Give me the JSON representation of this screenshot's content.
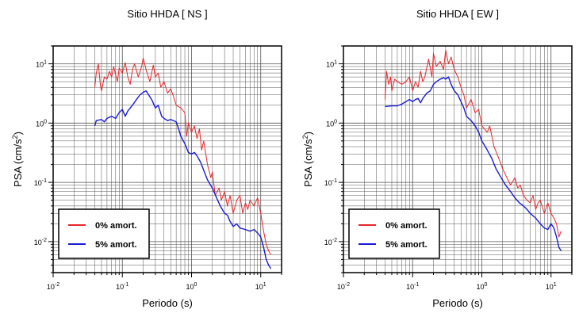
{
  "chart_data": [
    {
      "type": "line",
      "title": "Sitio HHDA [ NS ]",
      "xlabel": "Periodo (s)",
      "ylabel_base": "PSA (cm/s",
      "ylabel_exp": "2",
      "ylabel_close": ")",
      "x_scale": "log",
      "y_scale": "log",
      "xlim": [
        0.01,
        20
      ],
      "ylim": [
        0.003,
        20
      ],
      "grid": true,
      "legend_position": "bottom-left",
      "x_ticks": [
        {
          "value": 0.01,
          "base": "10",
          "exp": "-2"
        },
        {
          "value": 0.1,
          "base": "10",
          "exp": "-1"
        },
        {
          "value": 1,
          "base": "10",
          "exp": "0"
        },
        {
          "value": 10,
          "base": "10",
          "exp": "1"
        }
      ],
      "y_ticks": [
        {
          "value": 0.01,
          "base": "10",
          "exp": "-2"
        },
        {
          "value": 0.1,
          "base": "10",
          "exp": "-1"
        },
        {
          "value": 1,
          "base": "10",
          "exp": "0"
        },
        {
          "value": 10,
          "base": "10",
          "exp": "1"
        }
      ],
      "series": [
        {
          "name": "0% amort.",
          "color": "#e8262a",
          "points": [
            [
              0.04,
              4.0
            ],
            [
              0.042,
              7.0
            ],
            [
              0.045,
              10.0
            ],
            [
              0.048,
              4.5
            ],
            [
              0.05,
              3.5
            ],
            [
              0.055,
              6.0
            ],
            [
              0.06,
              5.5
            ],
            [
              0.065,
              7.5
            ],
            [
              0.07,
              6.0
            ],
            [
              0.075,
              9.0
            ],
            [
              0.08,
              6.5
            ],
            [
              0.085,
              5.0
            ],
            [
              0.09,
              8.5
            ],
            [
              0.1,
              7.0
            ],
            [
              0.11,
              10.5
            ],
            [
              0.12,
              6.0
            ],
            [
              0.13,
              4.5
            ],
            [
              0.14,
              8.0
            ],
            [
              0.15,
              10.0
            ],
            [
              0.17,
              6.0
            ],
            [
              0.19,
              9.0
            ],
            [
              0.2,
              12.5
            ],
            [
              0.22,
              8.0
            ],
            [
              0.25,
              5.0
            ],
            [
              0.28,
              9.5
            ],
            [
              0.3,
              6.0
            ],
            [
              0.33,
              7.0
            ],
            [
              0.36,
              4.0
            ],
            [
              0.4,
              5.0
            ],
            [
              0.45,
              3.2
            ],
            [
              0.5,
              3.8
            ],
            [
              0.55,
              2.8
            ],
            [
              0.6,
              2.0
            ],
            [
              0.7,
              1.8
            ],
            [
              0.8,
              1.5
            ],
            [
              0.85,
              0.6
            ],
            [
              0.9,
              1.0
            ],
            [
              1.0,
              0.7
            ],
            [
              1.1,
              0.9
            ],
            [
              1.2,
              0.55
            ],
            [
              1.3,
              0.8
            ],
            [
              1.4,
              0.35
            ],
            [
              1.5,
              0.5
            ],
            [
              1.7,
              0.2
            ],
            [
              1.9,
              0.12
            ],
            [
              2.0,
              0.15
            ],
            [
              2.2,
              0.06
            ],
            [
              2.5,
              0.08
            ],
            [
              2.7,
              0.05
            ],
            [
              3.0,
              0.07
            ],
            [
              3.3,
              0.04
            ],
            [
              3.6,
              0.06
            ],
            [
              4.0,
              0.03
            ],
            [
              4.5,
              0.05
            ],
            [
              5.0,
              0.06
            ],
            [
              5.5,
              0.03
            ],
            [
              6.0,
              0.045
            ],
            [
              6.5,
              0.035
            ],
            [
              7.0,
              0.05
            ],
            [
              8.0,
              0.04
            ],
            [
              9.0,
              0.055
            ],
            [
              10.0,
              0.03
            ],
            [
              11.0,
              0.015
            ],
            [
              12.0,
              0.009
            ],
            [
              13.0,
              0.007
            ],
            [
              14.0,
              0.006
            ]
          ]
        },
        {
          "name": "5% amort.",
          "color": "#1a1ad6",
          "points": [
            [
              0.04,
              0.9
            ],
            [
              0.042,
              1.1
            ],
            [
              0.05,
              1.15
            ],
            [
              0.055,
              1.05
            ],
            [
              0.06,
              1.2
            ],
            [
              0.07,
              1.3
            ],
            [
              0.08,
              1.2
            ],
            [
              0.09,
              1.5
            ],
            [
              0.1,
              1.7
            ],
            [
              0.11,
              1.3
            ],
            [
              0.12,
              1.6
            ],
            [
              0.14,
              2.0
            ],
            [
              0.16,
              2.5
            ],
            [
              0.18,
              3.0
            ],
            [
              0.2,
              3.3
            ],
            [
              0.22,
              3.5
            ],
            [
              0.24,
              3.0
            ],
            [
              0.27,
              2.4
            ],
            [
              0.3,
              1.8
            ],
            [
              0.33,
              2.0
            ],
            [
              0.37,
              1.3
            ],
            [
              0.4,
              1.2
            ],
            [
              0.45,
              1.1
            ],
            [
              0.5,
              1.15
            ],
            [
              0.6,
              1.05
            ],
            [
              0.65,
              0.8
            ],
            [
              0.7,
              0.6
            ],
            [
              0.8,
              0.45
            ],
            [
              0.9,
              0.32
            ],
            [
              1.0,
              0.3
            ],
            [
              1.1,
              0.32
            ],
            [
              1.2,
              0.28
            ],
            [
              1.35,
              0.22
            ],
            [
              1.5,
              0.16
            ],
            [
              1.7,
              0.11
            ],
            [
              2.0,
              0.08
            ],
            [
              2.3,
              0.055
            ],
            [
              2.6,
              0.04
            ],
            [
              3.0,
              0.03
            ],
            [
              3.3,
              0.028
            ],
            [
              3.6,
              0.022
            ],
            [
              4.0,
              0.018
            ],
            [
              4.5,
              0.02
            ],
            [
              5.0,
              0.017
            ],
            [
              6.0,
              0.016
            ],
            [
              7.0,
              0.015
            ],
            [
              8.0,
              0.016
            ],
            [
              9.0,
              0.014
            ],
            [
              10.0,
              0.012
            ],
            [
              11.0,
              0.008
            ],
            [
              12.0,
              0.005
            ],
            [
              13.0,
              0.004
            ],
            [
              14.0,
              0.0035
            ]
          ]
        }
      ]
    },
    {
      "type": "line",
      "title": "Sitio HHDA [ EW ]",
      "xlabel": "Periodo (s)",
      "ylabel_base": "PSA (cm/s",
      "ylabel_exp": "2",
      "ylabel_close": ")",
      "x_scale": "log",
      "y_scale": "log",
      "xlim": [
        0.01,
        20
      ],
      "ylim": [
        0.003,
        20
      ],
      "grid": true,
      "legend_position": "bottom-left",
      "x_ticks": [
        {
          "value": 0.01,
          "base": "10",
          "exp": "-2"
        },
        {
          "value": 0.1,
          "base": "10",
          "exp": "-1"
        },
        {
          "value": 1,
          "base": "10",
          "exp": "0"
        },
        {
          "value": 10,
          "base": "10",
          "exp": "1"
        }
      ],
      "y_ticks": [
        {
          "value": 0.01,
          "base": "10",
          "exp": "-2"
        },
        {
          "value": 0.1,
          "base": "10",
          "exp": "-1"
        },
        {
          "value": 1,
          "base": "10",
          "exp": "0"
        },
        {
          "value": 10,
          "base": "10",
          "exp": "1"
        }
      ],
      "series": [
        {
          "name": "0% amort.",
          "color": "#e8262a",
          "points": [
            [
              0.04,
              2.5
            ],
            [
              0.042,
              7.5
            ],
            [
              0.045,
              4.5
            ],
            [
              0.048,
              6.0
            ],
            [
              0.05,
              3.5
            ],
            [
              0.055,
              5.5
            ],
            [
              0.06,
              5.0
            ],
            [
              0.07,
              4.5
            ],
            [
              0.08,
              5.0
            ],
            [
              0.09,
              6.0
            ],
            [
              0.1,
              3.5
            ],
            [
              0.11,
              5.0
            ],
            [
              0.12,
              4.0
            ],
            [
              0.13,
              7.5
            ],
            [
              0.14,
              5.0
            ],
            [
              0.15,
              6.0
            ],
            [
              0.17,
              12.0
            ],
            [
              0.19,
              6.0
            ],
            [
              0.2,
              15.0
            ],
            [
              0.22,
              9.0
            ],
            [
              0.25,
              11.0
            ],
            [
              0.28,
              8.0
            ],
            [
              0.3,
              17.0
            ],
            [
              0.33,
              10.0
            ],
            [
              0.36,
              13.0
            ],
            [
              0.4,
              8.0
            ],
            [
              0.45,
              6.0
            ],
            [
              0.5,
              4.0
            ],
            [
              0.55,
              3.0
            ],
            [
              0.6,
              1.8
            ],
            [
              0.7,
              2.5
            ],
            [
              0.8,
              1.5
            ],
            [
              0.9,
              1.7
            ],
            [
              1.0,
              0.9
            ],
            [
              1.2,
              0.7
            ],
            [
              1.3,
              0.9
            ],
            [
              1.5,
              0.4
            ],
            [
              1.7,
              0.28
            ],
            [
              2.0,
              0.17
            ],
            [
              2.3,
              0.12
            ],
            [
              2.6,
              0.09
            ],
            [
              3.0,
              0.12
            ],
            [
              3.3,
              0.08
            ],
            [
              3.6,
              0.09
            ],
            [
              4.0,
              0.06
            ],
            [
              4.5,
              0.05
            ],
            [
              5.0,
              0.045
            ],
            [
              5.5,
              0.06
            ],
            [
              6.0,
              0.035
            ],
            [
              6.5,
              0.045
            ],
            [
              7.0,
              0.05
            ],
            [
              8.0,
              0.03
            ],
            [
              9.0,
              0.045
            ],
            [
              10.0,
              0.03
            ],
            [
              11.0,
              0.025
            ],
            [
              12.0,
              0.02
            ],
            [
              13.0,
              0.012
            ],
            [
              14.0,
              0.015
            ]
          ]
        },
        {
          "name": "5% amort.",
          "color": "#1a1ad6",
          "points": [
            [
              0.04,
              1.9
            ],
            [
              0.05,
              1.95
            ],
            [
              0.06,
              1.95
            ],
            [
              0.07,
              2.1
            ],
            [
              0.08,
              2.3
            ],
            [
              0.09,
              2.5
            ],
            [
              0.1,
              2.3
            ],
            [
              0.11,
              2.5
            ],
            [
              0.12,
              2.6
            ],
            [
              0.13,
              2.2
            ],
            [
              0.14,
              2.6
            ],
            [
              0.16,
              3.2
            ],
            [
              0.18,
              3.5
            ],
            [
              0.2,
              4.5
            ],
            [
              0.22,
              5.0
            ],
            [
              0.25,
              5.5
            ],
            [
              0.28,
              5.8
            ],
            [
              0.3,
              5.5
            ],
            [
              0.33,
              6.0
            ],
            [
              0.36,
              4.5
            ],
            [
              0.4,
              3.5
            ],
            [
              0.45,
              3.0
            ],
            [
              0.5,
              2.3
            ],
            [
              0.55,
              1.8
            ],
            [
              0.6,
              1.3
            ],
            [
              0.7,
              1.1
            ],
            [
              0.8,
              0.9
            ],
            [
              0.9,
              0.7
            ],
            [
              1.0,
              0.5
            ],
            [
              1.2,
              0.35
            ],
            [
              1.4,
              0.25
            ],
            [
              1.6,
              0.17
            ],
            [
              1.9,
              0.12
            ],
            [
              2.2,
              0.09
            ],
            [
              2.6,
              0.07
            ],
            [
              3.0,
              0.055
            ],
            [
              3.5,
              0.045
            ],
            [
              4.0,
              0.04
            ],
            [
              4.5,
              0.035
            ],
            [
              5.0,
              0.03
            ],
            [
              6.0,
              0.025
            ],
            [
              7.0,
              0.02
            ],
            [
              8.0,
              0.017
            ],
            [
              9.0,
              0.016
            ],
            [
              10.0,
              0.02
            ],
            [
              11.0,
              0.017
            ],
            [
              12.0,
              0.012
            ],
            [
              13.0,
              0.008
            ],
            [
              14.0,
              0.007
            ]
          ]
        }
      ]
    }
  ]
}
